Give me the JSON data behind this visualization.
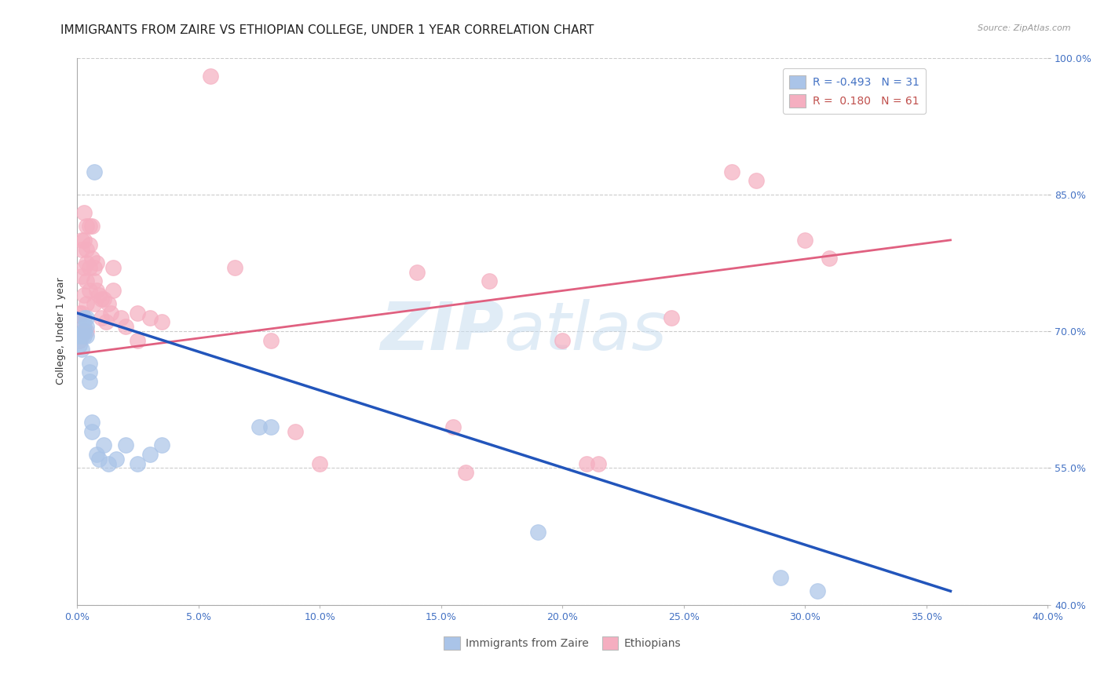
{
  "title": "IMMIGRANTS FROM ZAIRE VS ETHIOPIAN COLLEGE, UNDER 1 YEAR CORRELATION CHART",
  "source": "Source: ZipAtlas.com",
  "ylabel": "College, Under 1 year",
  "xlim": [
    0.0,
    0.4
  ],
  "ylim": [
    0.4,
    1.0
  ],
  "xticks": [
    0.0,
    0.05,
    0.1,
    0.15,
    0.2,
    0.25,
    0.3,
    0.35,
    0.4
  ],
  "yticks": [
    0.4,
    0.55,
    0.7,
    0.85,
    1.0
  ],
  "xticklabels": [
    "0.0%",
    "5.0%",
    "10.0%",
    "15.0%",
    "20.0%",
    "25.0%",
    "30.0%",
    "35.0%",
    "40.0%"
  ],
  "yticklabels": [
    "40.0%",
    "55.0%",
    "70.0%",
    "85.0%",
    "100.0%"
  ],
  "legend_r_blue": "-0.493",
  "legend_n_blue": "31",
  "legend_r_pink": "0.180",
  "legend_n_pink": "61",
  "blue_color": "#aac4e8",
  "pink_color": "#f5aec0",
  "blue_line_color": "#2255bb",
  "pink_line_color": "#e06080",
  "watermark_zip": "ZIP",
  "watermark_atlas": "atlas",
  "blue_x": [
    0.001,
    0.001,
    0.002,
    0.002,
    0.003,
    0.003,
    0.003,
    0.003,
    0.004,
    0.004,
    0.004,
    0.005,
    0.005,
    0.005,
    0.006,
    0.006,
    0.007,
    0.008,
    0.009,
    0.011,
    0.013,
    0.016,
    0.02,
    0.025,
    0.03,
    0.035,
    0.075,
    0.08,
    0.19,
    0.29,
    0.305
  ],
  "blue_y": [
    0.695,
    0.685,
    0.695,
    0.68,
    0.715,
    0.705,
    0.7,
    0.695,
    0.715,
    0.705,
    0.695,
    0.665,
    0.655,
    0.645,
    0.6,
    0.59,
    0.875,
    0.565,
    0.56,
    0.575,
    0.555,
    0.56,
    0.575,
    0.555,
    0.565,
    0.575,
    0.595,
    0.595,
    0.48,
    0.43,
    0.415
  ],
  "pink_x": [
    0.001,
    0.001,
    0.001,
    0.002,
    0.002,
    0.002,
    0.002,
    0.003,
    0.003,
    0.003,
    0.003,
    0.003,
    0.004,
    0.004,
    0.004,
    0.004,
    0.004,
    0.004,
    0.005,
    0.005,
    0.005,
    0.005,
    0.006,
    0.006,
    0.007,
    0.007,
    0.007,
    0.008,
    0.008,
    0.009,
    0.01,
    0.01,
    0.011,
    0.012,
    0.013,
    0.014,
    0.015,
    0.015,
    0.018,
    0.02,
    0.025,
    0.025,
    0.03,
    0.035,
    0.055,
    0.065,
    0.08,
    0.09,
    0.1,
    0.14,
    0.155,
    0.16,
    0.17,
    0.2,
    0.21,
    0.215,
    0.245,
    0.27,
    0.28,
    0.3,
    0.31
  ],
  "pink_y": [
    0.72,
    0.715,
    0.69,
    0.8,
    0.79,
    0.76,
    0.72,
    0.83,
    0.8,
    0.77,
    0.74,
    0.7,
    0.815,
    0.79,
    0.775,
    0.755,
    0.73,
    0.7,
    0.815,
    0.795,
    0.77,
    0.745,
    0.815,
    0.78,
    0.77,
    0.755,
    0.73,
    0.775,
    0.745,
    0.74,
    0.735,
    0.715,
    0.735,
    0.71,
    0.73,
    0.72,
    0.77,
    0.745,
    0.715,
    0.705,
    0.72,
    0.69,
    0.715,
    0.71,
    0.98,
    0.77,
    0.69,
    0.59,
    0.555,
    0.765,
    0.595,
    0.545,
    0.755,
    0.69,
    0.555,
    0.555,
    0.715,
    0.875,
    0.865,
    0.8,
    0.78
  ],
  "blue_line_x0": 0.0,
  "blue_line_x1": 0.36,
  "blue_line_y0": 0.72,
  "blue_line_y1": 0.415,
  "pink_line_x0": 0.0,
  "pink_line_x1": 0.36,
  "pink_line_y0": 0.675,
  "pink_line_y1": 0.8,
  "background_color": "#ffffff",
  "grid_color": "#cccccc",
  "title_fontsize": 11,
  "axis_label_fontsize": 9,
  "tick_fontsize": 9,
  "legend_fontsize": 10
}
